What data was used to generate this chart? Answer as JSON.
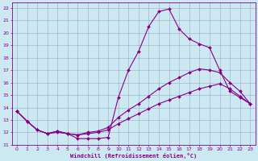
{
  "xlabel": "Windchill (Refroidissement éolien,°C)",
  "xlim": [
    -0.5,
    23.5
  ],
  "ylim": [
    11,
    22.4
  ],
  "yticks": [
    11,
    12,
    13,
    14,
    15,
    16,
    17,
    18,
    19,
    20,
    21,
    22
  ],
  "xticks": [
    0,
    1,
    2,
    3,
    4,
    5,
    6,
    7,
    8,
    9,
    10,
    11,
    12,
    13,
    14,
    15,
    16,
    17,
    18,
    19,
    20,
    21,
    22,
    23
  ],
  "background_color": "#cce8f0",
  "grid_color": "#99aacc",
  "line_color": "#880088",
  "line_width": 0.8,
  "marker": "D",
  "marker_size": 2.0,
  "series1_x": [
    0,
    1,
    2,
    3,
    4,
    5,
    6,
    7,
    8,
    9,
    10,
    11,
    12,
    13,
    14,
    15,
    16,
    17,
    18,
    19,
    20,
    21,
    22,
    23
  ],
  "series1_y": [
    13.7,
    12.9,
    12.2,
    11.9,
    12.1,
    11.9,
    11.5,
    11.5,
    11.5,
    11.6,
    14.8,
    17.0,
    18.5,
    20.5,
    21.7,
    21.9,
    20.3,
    19.5,
    19.1,
    18.8,
    17.0,
    15.3,
    14.8,
    14.3
  ],
  "series2_x": [
    0,
    1,
    2,
    3,
    4,
    5,
    6,
    7,
    8,
    9,
    10,
    11,
    12,
    13,
    14,
    15,
    16,
    17,
    18,
    19,
    20,
    21,
    22,
    23
  ],
  "series2_y": [
    13.7,
    12.9,
    12.2,
    11.9,
    12.1,
    11.9,
    11.8,
    12.0,
    12.1,
    12.4,
    13.2,
    13.8,
    14.3,
    14.9,
    15.5,
    16.0,
    16.4,
    16.8,
    17.1,
    17.0,
    16.8,
    16.0,
    15.3,
    14.3
  ],
  "series3_x": [
    0,
    1,
    2,
    3,
    4,
    5,
    6,
    7,
    8,
    9,
    10,
    11,
    12,
    13,
    14,
    15,
    16,
    17,
    18,
    19,
    20,
    21,
    22,
    23
  ],
  "series3_y": [
    13.7,
    12.9,
    12.2,
    11.9,
    12.0,
    11.9,
    11.8,
    11.9,
    12.0,
    12.2,
    12.7,
    13.1,
    13.5,
    13.9,
    14.3,
    14.6,
    14.9,
    15.2,
    15.5,
    15.7,
    15.9,
    15.5,
    14.9,
    14.3
  ]
}
